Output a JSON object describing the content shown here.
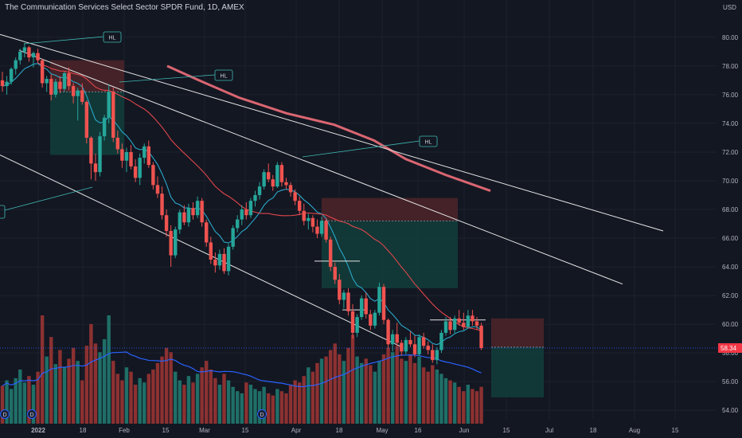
{
  "header": {
    "title": "The Communication Services Select Sector SPDR Fund, 1D, AMEX"
  },
  "colors": {
    "background": "#131722",
    "grid": "#1e222d",
    "up": "#26a69a",
    "down": "#ef5350",
    "up_volume": "#1f6f67",
    "down_volume": "#8c3131",
    "ema_fast": "#2aa7c9",
    "sma_mid": "#e0464b",
    "ema_slow": "#f06f7a",
    "volume_ma": "#2962ff",
    "trendline": "#e6e6e6",
    "callout": "#3fb9b3",
    "profit_zone": "#123c3a",
    "loss_zone": "#4a2329",
    "price_label": "#f23645",
    "axis_text": "#b2b5be",
    "price_line": "#2962ff"
  },
  "chart_data": {
    "type": "candlestick",
    "title": "The Communication Services Select Sector SPDR Fund, 1D, AMEX",
    "y_axis": {
      "unit": "USD",
      "range": [
        53.4,
        82.6
      ],
      "ticks": [
        80.0,
        78.0,
        76.0,
        74.0,
        72.0,
        70.0,
        68.0,
        66.0,
        64.0,
        62.0,
        60.0,
        58.0,
        56.0,
        54.0
      ]
    },
    "x_axis": {
      "tick_labels": [
        "2022",
        "18",
        "Feb",
        "15",
        "Mar",
        "15",
        "Apr",
        "18",
        "May",
        "16",
        "Jun",
        "15",
        "Jul",
        "18",
        "Aug",
        "15"
      ]
    },
    "last_price": "58.34",
    "last_price_value": 58.34,
    "annotations": [
      "HL",
      "HL",
      "HL"
    ],
    "event_markers": [
      "D",
      "D",
      "D"
    ],
    "ohlc": [
      [
        77.0,
        77.6,
        76.2,
        76.6
      ],
      [
        76.6,
        77.3,
        76.0,
        76.9
      ],
      [
        76.9,
        77.9,
        76.7,
        77.8
      ],
      [
        77.8,
        78.6,
        77.4,
        78.4
      ],
      [
        78.4,
        79.2,
        78.1,
        79.0
      ],
      [
        79.0,
        79.6,
        78.6,
        79.3
      ],
      [
        79.3,
        79.4,
        78.3,
        78.6
      ],
      [
        78.6,
        79.0,
        77.9,
        78.9
      ],
      [
        78.9,
        79.2,
        78.2,
        78.4
      ],
      [
        78.4,
        78.5,
        76.5,
        76.8
      ],
      [
        76.8,
        77.3,
        76.2,
        77.1
      ],
      [
        77.1,
        77.4,
        75.6,
        76.0
      ],
      [
        76.0,
        77.1,
        75.8,
        76.9
      ],
      [
        76.9,
        77.3,
        76.1,
        76.4
      ],
      [
        76.4,
        77.6,
        76.2,
        77.5
      ],
      [
        77.5,
        77.9,
        76.3,
        76.6
      ],
      [
        76.6,
        76.8,
        75.4,
        75.9
      ],
      [
        75.9,
        76.5,
        74.2,
        76.3
      ],
      [
        76.3,
        76.8,
        75.3,
        75.5
      ],
      [
        75.5,
        75.6,
        72.6,
        73.0
      ],
      [
        73.0,
        73.1,
        70.1,
        71.2
      ],
      [
        71.2,
        71.9,
        70.0,
        70.6
      ],
      [
        70.6,
        73.4,
        70.3,
        73.1
      ],
      [
        73.1,
        74.6,
        72.8,
        74.4
      ],
      [
        74.4,
        76.7,
        74.0,
        76.2
      ],
      [
        76.2,
        76.5,
        72.7,
        73.0
      ],
      [
        73.0,
        73.5,
        71.9,
        72.2
      ],
      [
        72.2,
        72.6,
        70.9,
        71.4
      ],
      [
        71.4,
        72.3,
        70.6,
        72.0
      ],
      [
        72.0,
        72.5,
        70.8,
        71.0
      ],
      [
        71.0,
        71.5,
        69.9,
        70.2
      ],
      [
        70.2,
        71.9,
        69.7,
        71.6
      ],
      [
        71.6,
        72.6,
        71.2,
        72.4
      ],
      [
        72.4,
        72.8,
        70.9,
        71.1
      ],
      [
        71.1,
        71.3,
        69.4,
        69.7
      ],
      [
        69.7,
        70.3,
        68.8,
        69.1
      ],
      [
        69.1,
        69.6,
        67.3,
        67.6
      ],
      [
        67.6,
        68.0,
        66.1,
        66.5
      ],
      [
        66.5,
        66.9,
        64.0,
        64.8
      ],
      [
        64.8,
        66.8,
        64.6,
        66.6
      ],
      [
        66.6,
        68.0,
        66.3,
        67.8
      ],
      [
        67.8,
        68.3,
        66.9,
        67.1
      ],
      [
        67.1,
        68.4,
        66.8,
        68.1
      ],
      [
        68.1,
        68.5,
        67.3,
        67.6
      ],
      [
        67.6,
        68.9,
        67.4,
        68.6
      ],
      [
        68.6,
        68.8,
        66.8,
        67.1
      ],
      [
        67.1,
        67.3,
        65.4,
        65.7
      ],
      [
        65.7,
        66.1,
        64.2,
        64.5
      ],
      [
        64.5,
        65.0,
        63.6,
        64.1
      ],
      [
        64.1,
        65.2,
        63.8,
        64.9
      ],
      [
        64.9,
        65.3,
        63.5,
        63.7
      ],
      [
        63.7,
        65.6,
        63.4,
        65.4
      ],
      [
        65.4,
        66.9,
        65.2,
        66.7
      ],
      [
        66.7,
        67.6,
        66.4,
        67.3
      ],
      [
        67.3,
        68.3,
        66.9,
        68.0
      ],
      [
        68.0,
        68.5,
        67.3,
        67.6
      ],
      [
        67.6,
        68.8,
        67.4,
        68.6
      ],
      [
        68.6,
        69.3,
        68.2,
        69.0
      ],
      [
        69.0,
        69.9,
        68.7,
        69.6
      ],
      [
        69.6,
        70.8,
        69.4,
        70.6
      ],
      [
        70.6,
        71.2,
        69.9,
        70.1
      ],
      [
        70.1,
        70.4,
        69.3,
        69.6
      ],
      [
        69.6,
        71.3,
        69.5,
        71.1
      ],
      [
        71.1,
        71.3,
        69.6,
        69.9
      ],
      [
        69.9,
        70.2,
        69.4,
        69.7
      ],
      [
        69.7,
        69.9,
        68.9,
        69.2
      ],
      [
        69.2,
        69.4,
        68.3,
        68.6
      ],
      [
        68.6,
        68.9,
        67.6,
        67.9
      ],
      [
        67.9,
        68.4,
        66.9,
        67.2
      ],
      [
        67.2,
        67.7,
        66.6,
        67.4
      ],
      [
        67.4,
        67.6,
        66.4,
        66.8
      ],
      [
        66.8,
        67.3,
        66.0,
        66.3
      ],
      [
        66.3,
        67.5,
        66.1,
        67.2
      ],
      [
        67.2,
        67.4,
        65.7,
        65.9
      ],
      [
        65.9,
        66.1,
        63.7,
        64.0
      ],
      [
        64.0,
        64.3,
        62.8,
        63.1
      ],
      [
        63.1,
        63.5,
        61.4,
        61.7
      ],
      [
        61.7,
        62.4,
        61.1,
        62.2
      ],
      [
        62.2,
        62.5,
        60.6,
        60.9
      ],
      [
        60.9,
        61.4,
        59.0,
        59.4
      ],
      [
        59.4,
        60.7,
        59.1,
        60.5
      ],
      [
        60.5,
        62.0,
        60.3,
        61.8
      ],
      [
        61.8,
        62.2,
        60.4,
        60.7
      ],
      [
        60.7,
        61.0,
        59.6,
        59.9
      ],
      [
        59.9,
        61.0,
        59.7,
        60.8
      ],
      [
        60.8,
        62.9,
        60.6,
        62.6
      ],
      [
        62.6,
        62.8,
        60.0,
        60.3
      ],
      [
        60.3,
        60.4,
        58.3,
        58.6
      ],
      [
        58.6,
        59.6,
        58.1,
        59.3
      ],
      [
        59.3,
        60.1,
        58.5,
        58.7
      ],
      [
        58.7,
        58.9,
        57.8,
        58.1
      ],
      [
        58.1,
        59.1,
        57.9,
        58.9
      ],
      [
        58.9,
        59.5,
        58.4,
        58.6
      ],
      [
        58.6,
        59.2,
        57.7,
        57.9
      ],
      [
        57.9,
        59.3,
        57.8,
        59.1
      ],
      [
        59.1,
        59.4,
        58.3,
        58.5
      ],
      [
        58.5,
        58.8,
        57.9,
        58.2
      ],
      [
        58.2,
        58.6,
        57.3,
        57.5
      ],
      [
        57.5,
        58.4,
        57.2,
        58.2
      ],
      [
        58.2,
        59.6,
        58.0,
        59.4
      ],
      [
        59.4,
        60.5,
        59.2,
        60.2
      ],
      [
        60.2,
        60.5,
        59.3,
        59.6
      ],
      [
        59.6,
        60.6,
        59.4,
        60.4
      ],
      [
        60.4,
        61.0,
        59.9,
        60.1
      ],
      [
        60.1,
        60.8,
        59.6,
        59.8
      ],
      [
        59.8,
        61.0,
        59.7,
        60.6
      ],
      [
        60.6,
        61.0,
        59.9,
        60.2
      ],
      [
        60.2,
        60.5,
        59.6,
        59.9
      ],
      [
        59.9,
        60.1,
        58.2,
        58.34
      ]
    ],
    "volume_relative": [
      0.35,
      0.4,
      0.32,
      0.42,
      0.5,
      0.38,
      0.44,
      0.36,
      0.48,
      1.0,
      0.62,
      0.8,
      0.55,
      0.68,
      0.52,
      0.6,
      0.7,
      0.58,
      0.4,
      0.72,
      0.92,
      0.74,
      0.66,
      0.78,
      1.0,
      0.58,
      0.46,
      0.4,
      0.52,
      0.48,
      0.36,
      0.42,
      0.38,
      0.46,
      0.5,
      0.56,
      0.62,
      0.7,
      0.66,
      0.48,
      0.4,
      0.36,
      0.44,
      0.38,
      0.46,
      0.52,
      0.58,
      0.5,
      0.42,
      0.36,
      0.46,
      0.4,
      0.34,
      0.3,
      0.28,
      0.38,
      0.36,
      0.32,
      0.3,
      0.34,
      0.28,
      0.26,
      0.32,
      0.3,
      0.28,
      0.36,
      0.4,
      0.38,
      0.44,
      0.52,
      0.48,
      0.56,
      0.6,
      0.62,
      0.68,
      0.74,
      0.64,
      0.58,
      0.7,
      0.82,
      0.62,
      0.56,
      0.6,
      0.54,
      0.48,
      0.58,
      0.64,
      0.7,
      0.66,
      0.72,
      0.6,
      0.58,
      0.64,
      0.56,
      0.62,
      0.52,
      0.48,
      0.54,
      0.5,
      0.46,
      0.42,
      0.4,
      0.38,
      0.34,
      0.3,
      0.36,
      0.32,
      0.3,
      0.34
    ],
    "trendlines": [
      {
        "name": "descending resistance",
        "from": [
          0,
          80.2
        ],
        "to": [
          193,
          66.5
        ]
      },
      {
        "name": "inner channel upper",
        "from": [
          24,
          79.1
        ],
        "to": [
          187,
          62.8
        ]
      },
      {
        "name": "channel lower",
        "from": [
          0,
          71.8
        ],
        "to": [
          113,
          58.4
        ]
      }
    ],
    "position_boxes": [
      {
        "type": "short",
        "entry": 76.2,
        "stop": 78.4,
        "target": 71.8
      },
      {
        "type": "short",
        "entry": 67.2,
        "stop": 68.8,
        "target": 62.5
      },
      {
        "type": "short",
        "entry": 58.4,
        "stop": 60.4,
        "target": 54.9
      }
    ]
  }
}
